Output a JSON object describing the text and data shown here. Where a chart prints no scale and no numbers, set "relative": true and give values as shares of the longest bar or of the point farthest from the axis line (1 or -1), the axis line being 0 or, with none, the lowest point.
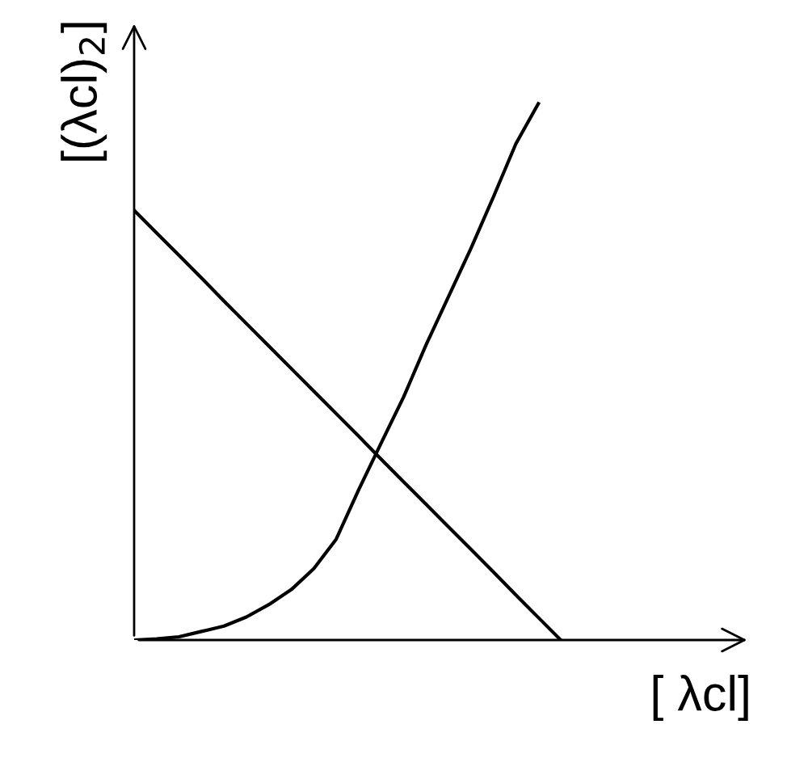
{
  "chart_data": {
    "type": "line",
    "relative": true,
    "xlabel": "[ λcl]",
    "ylabel": "[(λcl)$_{2}$]",
    "marker": "none",
    "line_style": "solid",
    "categories": [
      null,
      null,
      null,
      null,
      null,
      null,
      null,
      null,
      null,
      null,
      null,
      null,
      null,
      null,
      null,
      null,
      null,
      null,
      null,
      null
    ],
    "series": [
      {
        "color": "#000000",
        "values": [
          0.801,
          0.759,
          0.717,
          0.675,
          0.632,
          0.59,
          0.548,
          0.506,
          0.464,
          0.422,
          0.38,
          0.337,
          0.295,
          0.253,
          0.211,
          0.169,
          0.127,
          0.084,
          0.042,
          0
        ]
      },
      {
        "color": "#000000",
        "values": [
          0,
          0.002,
          0.006,
          0.016,
          0.026,
          0.043,
          0.066,
          0.094,
          0.133,
          0.188,
          0.28,
          0.367,
          0.453,
          0.55,
          0.64,
          0.73,
          0.826,
          0.925,
          1.0,
          null
        ]
      }
    ]
  }
}
